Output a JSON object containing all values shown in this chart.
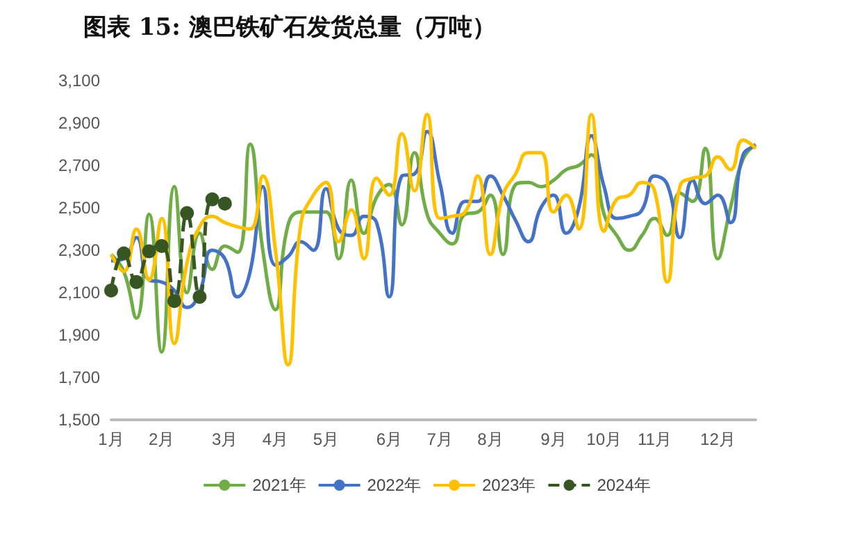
{
  "chart_data": {
    "type": "line",
    "title": "图表 15:  澳巴铁矿石发货总量（万吨）",
    "categories": [
      "1月",
      null,
      null,
      null,
      "2月",
      null,
      null,
      null,
      null,
      "3月",
      null,
      null,
      null,
      "4月",
      null,
      null,
      null,
      "5月",
      null,
      null,
      null,
      null,
      "6月",
      null,
      null,
      null,
      "7月",
      null,
      null,
      null,
      "8月",
      null,
      null,
      null,
      null,
      "9月",
      null,
      null,
      null,
      "10月",
      null,
      null,
      null,
      "11月",
      null,
      null,
      null,
      null,
      "12月",
      null,
      null,
      null
    ],
    "series": [
      {
        "name": "2021年",
        "color": "#70ad47",
        "values": [
          2280,
          2200,
          1980,
          2470,
          1820,
          2600,
          2100,
          2380,
          2210,
          2320,
          2290,
          2800,
          2300,
          2020,
          2420,
          2480,
          2480,
          2480,
          2260,
          2630,
          2380,
          2550,
          2610,
          2420,
          2760,
          2470,
          2380,
          2330,
          2470,
          2480,
          2560,
          2280,
          2610,
          2620,
          2600,
          2630,
          2680,
          2700,
          2750,
          2470,
          2370,
          2300,
          2370,
          2450,
          2370,
          2570,
          2530,
          2780,
          2260,
          2500,
          2730,
          2800
        ]
      },
      {
        "name": "2022年",
        "color": "#4472c4",
        "values": [
          2250,
          2260,
          2360,
          2160,
          2150,
          2110,
          2030,
          2100,
          2300,
          2260,
          2080,
          2200,
          2600,
          2230,
          2270,
          2340,
          2300,
          2590,
          2400,
          2370,
          2460,
          2430,
          2080,
          2650,
          2660,
          2860,
          2620,
          2380,
          2530,
          2530,
          2650,
          2560,
          2440,
          2340,
          2500,
          2560,
          2380,
          2500,
          2840,
          2600,
          2450,
          2460,
          2490,
          2650,
          2610,
          2360,
          2630,
          2520,
          2560,
          2430,
          2750,
          2790
        ]
      },
      {
        "name": "2023年",
        "color": "#ffc000",
        "values": [
          2280,
          2200,
          2400,
          2160,
          2450,
          1860,
          2240,
          2410,
          2460,
          2430,
          2410,
          2400,
          2650,
          2300,
          1760,
          2420,
          2560,
          2620,
          2340,
          2490,
          2260,
          2640,
          2560,
          2850,
          2580,
          2940,
          2450,
          2460,
          2480,
          2650,
          2280,
          2560,
          2660,
          2760,
          2760,
          2480,
          2560,
          2400,
          2940,
          2390,
          2540,
          2560,
          2620,
          2580,
          2150,
          2600,
          2640,
          2650,
          2740,
          2680,
          2820,
          2780
        ]
      },
      {
        "name": "2024年",
        "color": "#375623",
        "marker": "circle",
        "line_style": "dashed",
        "values": [
          2110,
          2285,
          2150,
          2295,
          2320,
          2060,
          2475,
          2080,
          2540,
          2520,
          null,
          null,
          null,
          null,
          null,
          null,
          null,
          null,
          null,
          null,
          null,
          null,
          null,
          null,
          null,
          null,
          null,
          null,
          null,
          null,
          null,
          null,
          null,
          null,
          null,
          null,
          null,
          null,
          null,
          null,
          null,
          null,
          null,
          null,
          null,
          null,
          null,
          null,
          null,
          null,
          null,
          null
        ]
      }
    ],
    "ylim": [
      1500,
      3100
    ],
    "yticks": [
      {
        "value": 1500,
        "label": "1,500"
      },
      {
        "value": 1700,
        "label": "1,700"
      },
      {
        "value": 1900,
        "label": "1,900"
      },
      {
        "value": 2100,
        "label": "2,100"
      },
      {
        "value": 2300,
        "label": "2,300"
      },
      {
        "value": 2500,
        "label": "2,500"
      },
      {
        "value": 2700,
        "label": "2,700"
      },
      {
        "value": 2900,
        "label": "2,900"
      },
      {
        "value": 3100,
        "label": "3,100"
      }
    ],
    "grid": false,
    "legend": "bottom",
    "marker": "none",
    "line_style": "solid"
  }
}
